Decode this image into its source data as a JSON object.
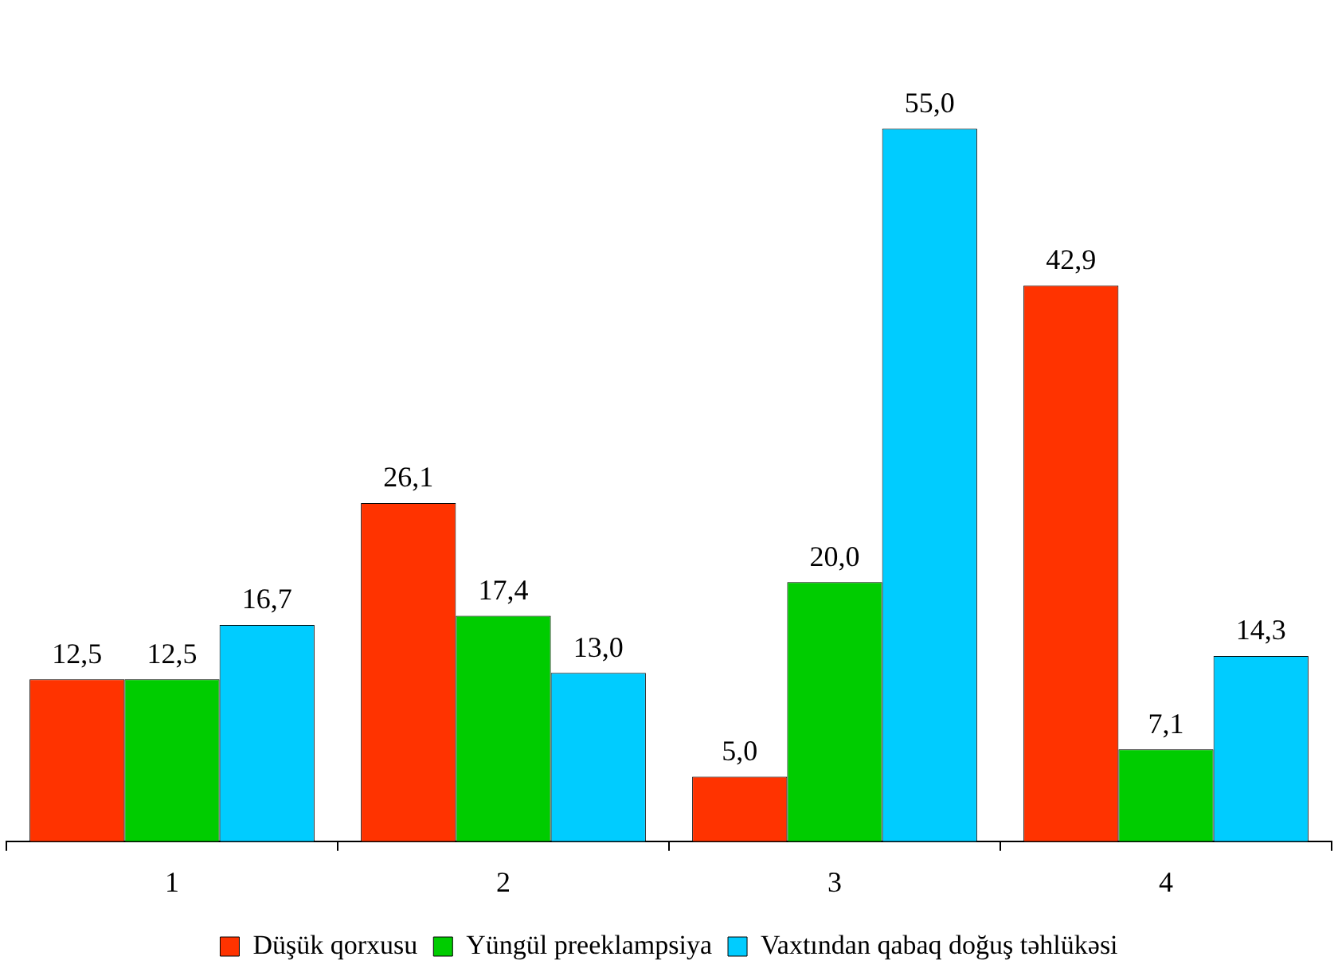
{
  "chart_data": {
    "type": "bar",
    "categories": [
      "1",
      "2",
      "3",
      "4"
    ],
    "series": [
      {
        "name": "Düşük qorxusu",
        "color": "#ff3300",
        "values": [
          12.5,
          26.1,
          5.0,
          42.9
        ],
        "value_labels": [
          "12,5",
          "26,1",
          "5,0",
          "42,9"
        ]
      },
      {
        "name": "Yüngül preeklampsiya",
        "color": "#00cc00",
        "values": [
          12.5,
          17.4,
          20.0,
          7.1
        ],
        "value_labels": [
          "12,5",
          "17,4",
          "20,0",
          "7,1"
        ]
      },
      {
        "name": "Vaxtından qabaq doğuş təhlükəsi",
        "color": "#00ccff",
        "values": [
          16.7,
          13.0,
          55.0,
          14.3
        ],
        "value_labels": [
          "16,7",
          "13,0",
          "55,0",
          "14,3"
        ]
      }
    ],
    "grid": false,
    "legend": "bottom",
    "tick_labels": "x"
  }
}
